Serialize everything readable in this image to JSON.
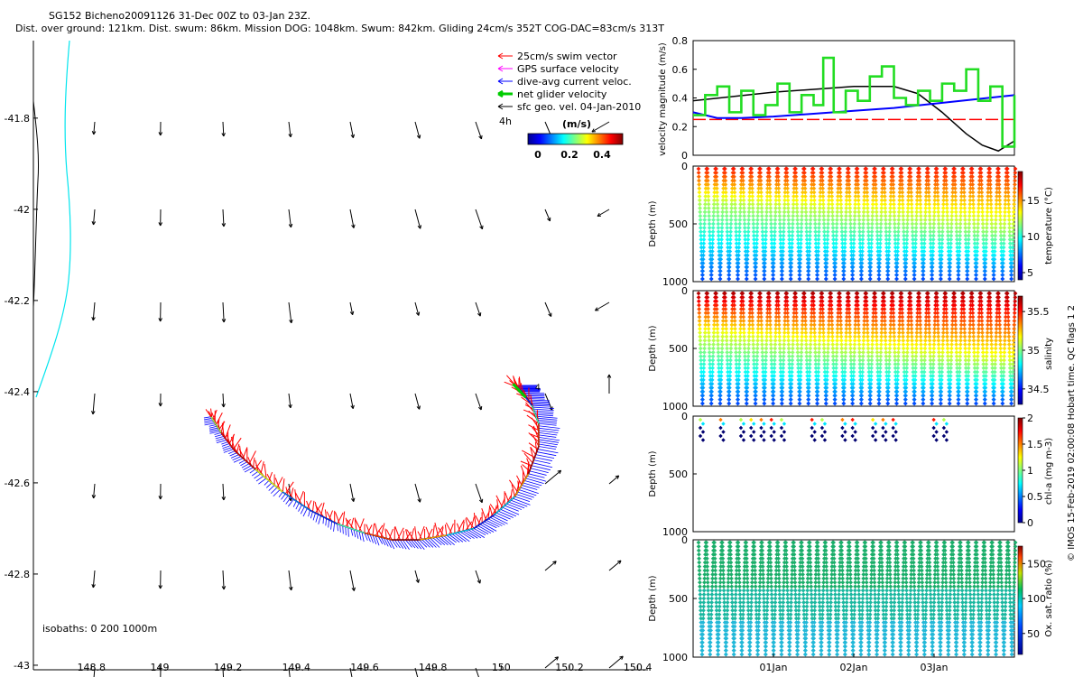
{
  "header": {
    "line1": "SG152 Bicheno20091126 31-Dec 00Z to 03-Jan 23Z.",
    "line2": "Dist. over ground: 121km. Dist. swum: 86km. Mission DOG: 1048km. Swum: 842km. Gliding 24cm/s 352T COG-DAC=83cm/s 313T"
  },
  "footer": {
    "copyright": "© IMOS 15-Feb-2019 02:00:08 Hobart time. QC flags 1  2"
  },
  "colors": {
    "swim": "#ff0000",
    "gps": "#ff00ff",
    "dac": "#0000ff",
    "net": "#00cc00",
    "sfc": "#000000",
    "coast": "#00e5ee"
  },
  "chart_data": [
    {
      "type": "quiver-map",
      "name": "map",
      "x_ticks": [
        "148.8",
        "149",
        "149.2",
        "149.4",
        "149.6",
        "149.8",
        "150",
        "150.2",
        "150.4"
      ],
      "x_tick_values": [
        148.8,
        149.0,
        149.2,
        149.4,
        149.6,
        149.8,
        150.0,
        150.2,
        150.4
      ],
      "y_ticks": [
        "-41.8",
        "-42",
        "-42.2",
        "-42.4",
        "-42.6",
        "-42.8",
        "-43"
      ],
      "y_tick_values": [
        -41.8,
        -42.0,
        -42.2,
        -42.4,
        -42.6,
        -42.8,
        -43.0
      ],
      "xlim": [
        148.63,
        150.43
      ],
      "ylim": [
        -43.01,
        -41.63
      ],
      "legend": {
        "items": [
          "25cm/s swim vector",
          "GPS surface velocity",
          "dive-avg current veloc.",
          "net glider velocity",
          "sfc geo. vel. 04-Jan-2010"
        ],
        "duration": "4h",
        "colorbar_title": "(m/s)",
        "colorbar_ticks": [
          "0",
          "0.2",
          "0.4"
        ]
      },
      "isobaths_label": "isobaths: 0   200   1000m",
      "track_end_label": "4",
      "track": [
        [
          149.15,
          -42.455
        ],
        [
          149.18,
          -42.49
        ],
        [
          149.22,
          -42.53
        ],
        [
          149.28,
          -42.57
        ],
        [
          149.36,
          -42.62
        ],
        [
          149.44,
          -42.66
        ],
        [
          149.52,
          -42.69
        ],
        [
          149.6,
          -42.71
        ],
        [
          149.68,
          -42.725
        ],
        [
          149.76,
          -42.725
        ],
        [
          149.84,
          -42.715
        ],
        [
          149.92,
          -42.7
        ],
        [
          149.98,
          -42.67
        ],
        [
          150.04,
          -42.63
        ],
        [
          150.08,
          -42.58
        ],
        [
          150.11,
          -42.52
        ],
        [
          150.11,
          -42.47
        ],
        [
          150.09,
          -42.43
        ],
        [
          150.06,
          -42.4
        ],
        [
          150.04,
          -42.385
        ]
      ]
    },
    {
      "type": "line",
      "name": "velocity",
      "ylabel": "velocity magnitude (m/s)",
      "ylim": [
        0,
        0.8
      ],
      "y_ticks": [
        "0",
        "0.2",
        "0.4",
        "0.6",
        "0.8"
      ],
      "y_tick_values": [
        0,
        0.2,
        0.4,
        0.6,
        0.8
      ],
      "xlim": [
        0,
        4
      ],
      "series": [
        {
          "name": "target",
          "color": "#ff0000",
          "x": [
            0,
            4
          ],
          "y": [
            0.25,
            0.25
          ]
        },
        {
          "name": "sfc geo",
          "color": "#000000",
          "x": [
            0,
            0.5,
            1.0,
            1.5,
            2.0,
            2.5,
            2.8,
            3.1,
            3.4,
            3.6,
            3.8,
            4.0
          ],
          "y": [
            0.38,
            0.41,
            0.44,
            0.46,
            0.48,
            0.48,
            0.43,
            0.3,
            0.15,
            0.07,
            0.03,
            0.1
          ]
        },
        {
          "name": "dac",
          "color": "#0000ff",
          "x": [
            0,
            0.3,
            0.6,
            1.0,
            1.5,
            2.0,
            2.5,
            3.0,
            3.5,
            4.0
          ],
          "y": [
            0.3,
            0.26,
            0.26,
            0.27,
            0.29,
            0.31,
            0.33,
            0.36,
            0.39,
            0.42
          ]
        },
        {
          "name": "net",
          "color": "#22dd22",
          "x": [
            0,
            0.15,
            0.3,
            0.45,
            0.6,
            0.75,
            0.9,
            1.05,
            1.2,
            1.35,
            1.5,
            1.62,
            1.75,
            1.9,
            2.05,
            2.2,
            2.35,
            2.5,
            2.65,
            2.8,
            2.95,
            3.1,
            3.25,
            3.4,
            3.55,
            3.7,
            3.85,
            4.0
          ],
          "y": [
            0.28,
            0.42,
            0.48,
            0.3,
            0.45,
            0.28,
            0.35,
            0.5,
            0.3,
            0.42,
            0.35,
            0.68,
            0.3,
            0.45,
            0.38,
            0.55,
            0.62,
            0.4,
            0.35,
            0.45,
            0.38,
            0.5,
            0.45,
            0.6,
            0.38,
            0.48,
            0.06,
            0.42
          ]
        }
      ]
    },
    {
      "type": "scatter",
      "name": "temperature",
      "ylabel": "Depth (m)",
      "colorbar_label": "temperature (°C)",
      "colorbar_ticks": [
        "5",
        "10",
        "15"
      ],
      "colorbar_values": [
        5,
        10,
        15
      ],
      "clim": [
        4,
        19
      ],
      "ylim": [
        0,
        1000
      ],
      "y_ticks": [
        "0",
        "500",
        "1000"
      ],
      "dives": 36,
      "pattern": "thermocline",
      "surface_value": 18,
      "deep_value": 5
    },
    {
      "type": "scatter",
      "name": "salinity",
      "ylabel": "Depth (m)",
      "colorbar_label": "salinity",
      "colorbar_ticks": [
        "34.5",
        "35",
        "35.5"
      ],
      "colorbar_values": [
        34.5,
        35.0,
        35.5
      ],
      "clim": [
        34.3,
        35.7
      ],
      "ylim": [
        0,
        1000
      ],
      "y_ticks": [
        "0",
        "500",
        "1000"
      ],
      "dives": 36,
      "pattern": "halocline",
      "surface_value": 35.6,
      "deep_value": 34.5
    },
    {
      "type": "scatter",
      "name": "chla",
      "ylabel": "Depth (m)",
      "colorbar_label": "chl-a (mg m-3)",
      "colorbar_ticks": [
        "0",
        "0.5",
        "1",
        "1.5",
        "2"
      ],
      "colorbar_values": [
        0,
        0.5,
        1.0,
        1.5,
        2.0
      ],
      "clim": [
        0,
        2
      ],
      "ylim": [
        0,
        1000
      ],
      "y_ticks": [
        "0",
        "500",
        "1000"
      ],
      "dive_indices": [
        0,
        2,
        4,
        5,
        6,
        7,
        8,
        11,
        12,
        14,
        15,
        17,
        18,
        19,
        23,
        24
      ]
    },
    {
      "type": "scatter",
      "name": "oxygen",
      "ylabel": "Depth (m)",
      "colorbar_label": "Ox. sat. ratio (%)",
      "colorbar_ticks": [
        "50",
        "100",
        "150"
      ],
      "colorbar_values": [
        50,
        100,
        150
      ],
      "clim": [
        20,
        175
      ],
      "ylim": [
        0,
        1000
      ],
      "y_ticks": [
        "0",
        "500",
        "1000"
      ],
      "x_ticks": [
        "01Jan",
        "02Jan",
        "03Jan"
      ],
      "x_tick_values": [
        1,
        2,
        3
      ],
      "xlim": [
        0,
        4
      ],
      "dives": 40,
      "surface_value": 105,
      "deep_value": 85
    }
  ]
}
